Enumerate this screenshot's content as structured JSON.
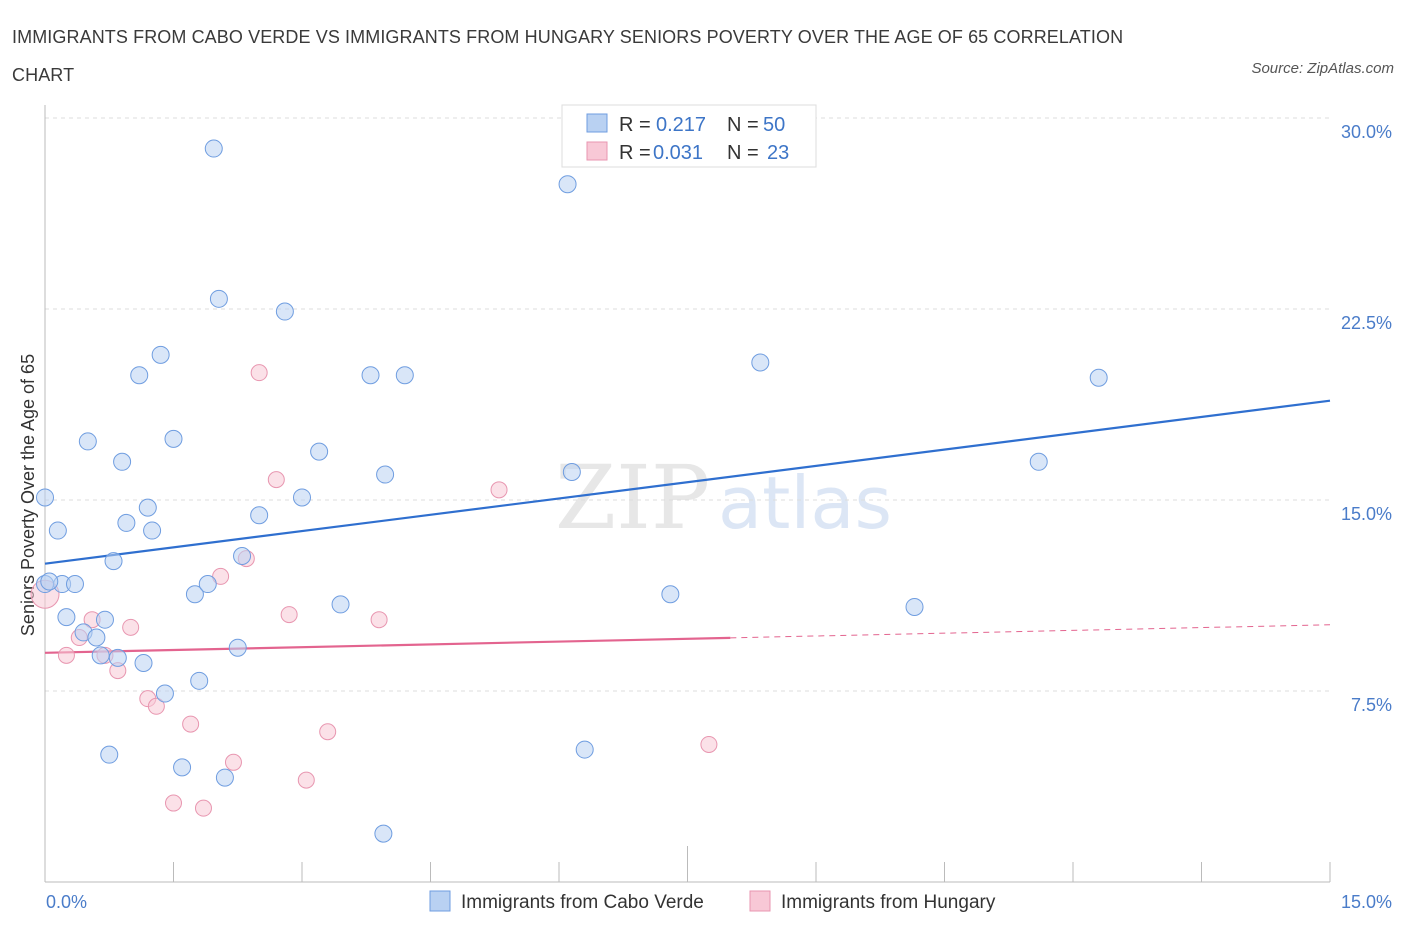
{
  "title": "IMMIGRANTS FROM CABO VERDE VS IMMIGRANTS FROM HUNGARY SENIORS POVERTY OVER THE AGE OF 65 CORRELATION CHART",
  "source": "Source: ZipAtlas.com",
  "watermark": {
    "zip": "ZIP",
    "atlas": "atlas"
  },
  "colors": {
    "blue_fill": "#b9d1f2",
    "blue_stroke": "#6f9de0",
    "blue_line": "#2f6fcf",
    "pink_fill": "#f8c8d6",
    "pink_stroke": "#e896b0",
    "pink_line": "#e3648f",
    "grid": "#dddddd",
    "tick_label": "#4a7cc9"
  },
  "legend_top": [
    {
      "r_label": "R =",
      "r_value": "0.217",
      "n_label": "N =",
      "n_value": "50"
    },
    {
      "r_label": "R =",
      "r_value": "0.031",
      "n_label": "N =",
      "n_value": "23"
    }
  ],
  "chart_data": {
    "type": "scatter",
    "title": "IMMIGRANTS FROM CABO VERDE VS IMMIGRANTS FROM HUNGARY SENIORS POVERTY OVER THE AGE OF 65 CORRELATION CHART",
    "xlabel": "",
    "ylabel": "Seniors Poverty Over the Age of 65",
    "xlim": [
      0,
      15
    ],
    "ylim": [
      0,
      30
    ],
    "x_tick_labels": [
      "0.0%",
      "15.0%"
    ],
    "y_ticks": [
      7.5,
      15.0,
      22.5,
      30.0
    ],
    "y_tick_labels": [
      "7.5%",
      "15.0%",
      "22.5%",
      "30.0%"
    ],
    "series": [
      {
        "name": "Immigrants from Cabo Verde",
        "color": "blue",
        "trend": {
          "x": [
            0,
            15
          ],
          "y": [
            12.5,
            18.9
          ]
        },
        "points": [
          [
            0.0,
            15.1
          ],
          [
            0.15,
            13.8
          ],
          [
            0.2,
            11.7
          ],
          [
            0.25,
            10.4
          ],
          [
            0.35,
            11.7
          ],
          [
            0.45,
            9.8
          ],
          [
            0.5,
            17.3
          ],
          [
            0.6,
            9.6
          ],
          [
            0.65,
            8.9
          ],
          [
            0.7,
            10.3
          ],
          [
            0.75,
            5.0
          ],
          [
            0.8,
            12.6
          ],
          [
            0.85,
            8.8
          ],
          [
            0.9,
            16.5
          ],
          [
            0.95,
            14.1
          ],
          [
            1.1,
            19.9
          ],
          [
            1.15,
            8.6
          ],
          [
            1.2,
            14.7
          ],
          [
            1.25,
            13.8
          ],
          [
            1.35,
            20.7
          ],
          [
            1.4,
            7.4
          ],
          [
            1.5,
            17.4
          ],
          [
            1.6,
            4.5
          ],
          [
            1.75,
            11.3
          ],
          [
            1.8,
            7.9
          ],
          [
            1.9,
            11.7
          ],
          [
            1.97,
            28.8
          ],
          [
            2.03,
            22.9
          ],
          [
            2.1,
            4.1
          ],
          [
            2.25,
            9.2
          ],
          [
            2.3,
            12.8
          ],
          [
            2.5,
            14.4
          ],
          [
            2.8,
            22.4
          ],
          [
            3.0,
            15.1
          ],
          [
            3.2,
            16.9
          ],
          [
            3.45,
            10.9
          ],
          [
            3.8,
            19.9
          ],
          [
            3.95,
            1.9
          ],
          [
            3.97,
            16.0
          ],
          [
            4.2,
            19.9
          ],
          [
            6.1,
            27.4
          ],
          [
            6.15,
            16.1
          ],
          [
            6.3,
            5.2
          ],
          [
            7.3,
            11.3
          ],
          [
            8.35,
            20.4
          ],
          [
            10.15,
            10.8
          ],
          [
            11.6,
            16.5
          ],
          [
            12.3,
            19.8
          ],
          [
            0.0,
            11.7
          ],
          [
            0.05,
            11.8
          ]
        ]
      },
      {
        "name": "Immigrants from Hungary",
        "color": "pink",
        "trend": {
          "x": [
            0,
            15
          ],
          "y": [
            9.0,
            10.1
          ],
          "solid_until_x": 8.0
        },
        "points": [
          [
            0.0,
            11.3
          ],
          [
            0.25,
            8.9
          ],
          [
            0.4,
            9.6
          ],
          [
            0.55,
            10.3
          ],
          [
            0.7,
            8.9
          ],
          [
            0.85,
            8.3
          ],
          [
            1.0,
            10.0
          ],
          [
            1.2,
            7.2
          ],
          [
            1.3,
            6.9
          ],
          [
            1.5,
            3.1
          ],
          [
            1.7,
            6.2
          ],
          [
            1.85,
            2.9
          ],
          [
            2.05,
            12.0
          ],
          [
            2.2,
            4.7
          ],
          [
            2.35,
            12.7
          ],
          [
            2.5,
            20.0
          ],
          [
            2.7,
            15.8
          ],
          [
            2.85,
            10.5
          ],
          [
            3.05,
            4.0
          ],
          [
            3.3,
            5.9
          ],
          [
            3.9,
            10.3
          ],
          [
            5.3,
            15.4
          ],
          [
            7.75,
            5.4
          ]
        ]
      }
    ]
  },
  "legend_bottom": [
    {
      "label": "Immigrants from Cabo Verde"
    },
    {
      "label": "Immigrants from Hungary"
    }
  ]
}
